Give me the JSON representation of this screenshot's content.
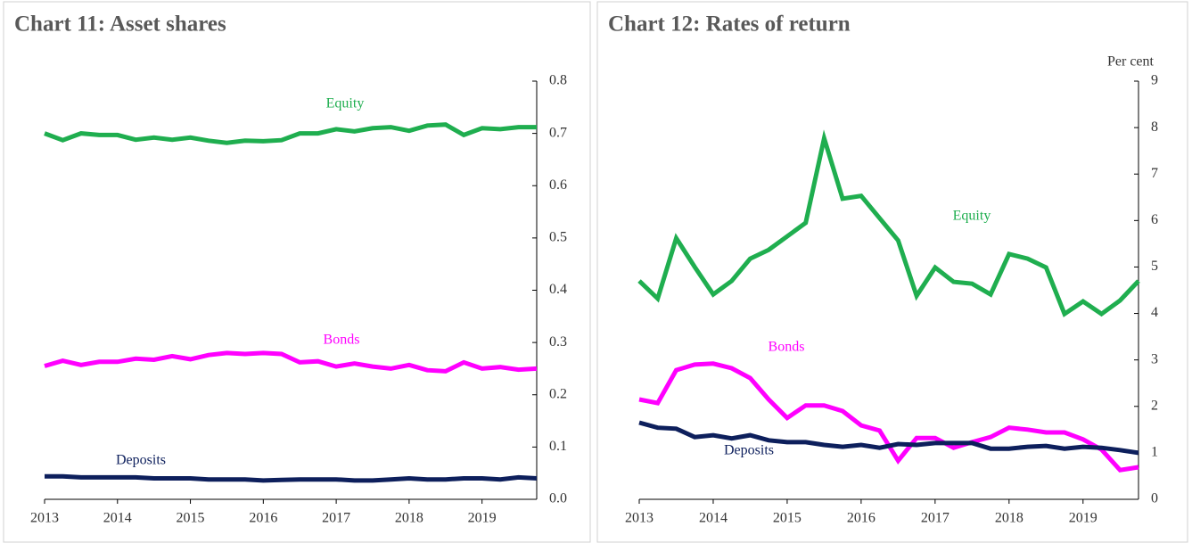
{
  "chart_data": [
    {
      "type": "line",
      "title": "Chart 11:  Asset shares",
      "x": [
        2013,
        2013.25,
        2013.5,
        2013.75,
        2014,
        2014.25,
        2014.5,
        2014.75,
        2015,
        2015.25,
        2015.5,
        2015.75,
        2016,
        2016.25,
        2016.5,
        2016.75,
        2017,
        2017.25,
        2017.5,
        2017.75,
        2018,
        2018.25,
        2018.5,
        2018.75,
        2019,
        2019.25,
        2019.5,
        2019.75
      ],
      "xlim": [
        2013,
        2019.75
      ],
      "xticks": [
        2013,
        2014,
        2015,
        2016,
        2017,
        2018,
        2019
      ],
      "ylim": [
        0,
        0.8
      ],
      "yticks": [
        {
          "value": 0,
          "label": "0.0"
        },
        0.1,
        0.2,
        0.3,
        0.4,
        0.5,
        0.6,
        0.7,
        0.8
      ],
      "series": [
        {
          "name": "Equity",
          "color": "#1fae4f",
          "values": [
            0.7,
            0.687,
            0.7,
            0.697,
            0.697,
            0.688,
            0.692,
            0.688,
            0.692,
            0.686,
            0.682,
            0.686,
            0.685,
            0.687,
            0.7,
            0.7,
            0.708,
            0.704,
            0.71,
            0.712,
            0.705,
            0.715,
            0.717,
            0.697,
            0.71,
            0.708,
            0.712,
            0.712
          ]
        },
        {
          "name": "Bonds",
          "color": "#ff00ff",
          "values": [
            0.255,
            0.265,
            0.257,
            0.263,
            0.263,
            0.269,
            0.267,
            0.274,
            0.268,
            0.276,
            0.28,
            0.278,
            0.28,
            0.278,
            0.262,
            0.264,
            0.254,
            0.26,
            0.254,
            0.25,
            0.257,
            0.247,
            0.245,
            0.262,
            0.25,
            0.253,
            0.248,
            0.25
          ]
        },
        {
          "name": "Deposits",
          "color": "#0d1f5c",
          "values": [
            0.044,
            0.044,
            0.042,
            0.042,
            0.042,
            0.042,
            0.04,
            0.04,
            0.04,
            0.038,
            0.038,
            0.038,
            0.036,
            0.037,
            0.038,
            0.038,
            0.038,
            0.036,
            0.036,
            0.038,
            0.04,
            0.038,
            0.038,
            0.04,
            0.04,
            0.038,
            0.042,
            0.04
          ]
        }
      ]
    },
    {
      "type": "line",
      "title": "Chart 12:  Rates of return",
      "y_label": "Per cent",
      "x": [
        2013,
        2013.25,
        2013.5,
        2013.75,
        2014,
        2014.25,
        2014.5,
        2014.75,
        2015,
        2015.25,
        2015.5,
        2015.75,
        2016,
        2016.25,
        2016.5,
        2016.75,
        2017,
        2017.25,
        2017.5,
        2017.75,
        2018,
        2018.25,
        2018.5,
        2018.75,
        2019,
        2019.25,
        2019.5,
        2019.75
      ],
      "xlim": [
        2013,
        2019.75
      ],
      "xticks": [
        2013,
        2014,
        2015,
        2016,
        2017,
        2018,
        2019
      ],
      "ylim": [
        0,
        9
      ],
      "yticks": [
        0,
        1,
        2,
        3,
        4,
        5,
        6,
        7,
        8,
        9
      ],
      "series": [
        {
          "name": "Equity",
          "color": "#1fae4f",
          "values": [
            4.7,
            4.32,
            5.62,
            5.0,
            4.41,
            4.7,
            5.18,
            5.37,
            5.66,
            5.95,
            7.77,
            6.47,
            6.53,
            6.05,
            5.57,
            4.38,
            4.99,
            4.68,
            4.64,
            4.41,
            5.28,
            5.18,
            4.99,
            3.99,
            4.26,
            3.99,
            4.28,
            4.7
          ]
        },
        {
          "name": "Bonds",
          "color": "#ff00ff",
          "values": [
            2.15,
            2.07,
            2.78,
            2.9,
            2.92,
            2.82,
            2.61,
            2.15,
            1.75,
            2.02,
            2.02,
            1.9,
            1.59,
            1.48,
            0.83,
            1.32,
            1.32,
            1.11,
            1.23,
            1.34,
            1.54,
            1.5,
            1.44,
            1.44,
            1.29,
            1.07,
            0.63,
            0.69
          ]
        },
        {
          "name": "Deposits",
          "color": "#0d1f5c",
          "values": [
            1.65,
            1.54,
            1.52,
            1.34,
            1.38,
            1.31,
            1.38,
            1.27,
            1.23,
            1.23,
            1.17,
            1.13,
            1.17,
            1.11,
            1.19,
            1.17,
            1.21,
            1.21,
            1.21,
            1.09,
            1.09,
            1.13,
            1.15,
            1.09,
            1.13,
            1.11,
            1.06,
            1.0
          ]
        }
      ]
    }
  ]
}
